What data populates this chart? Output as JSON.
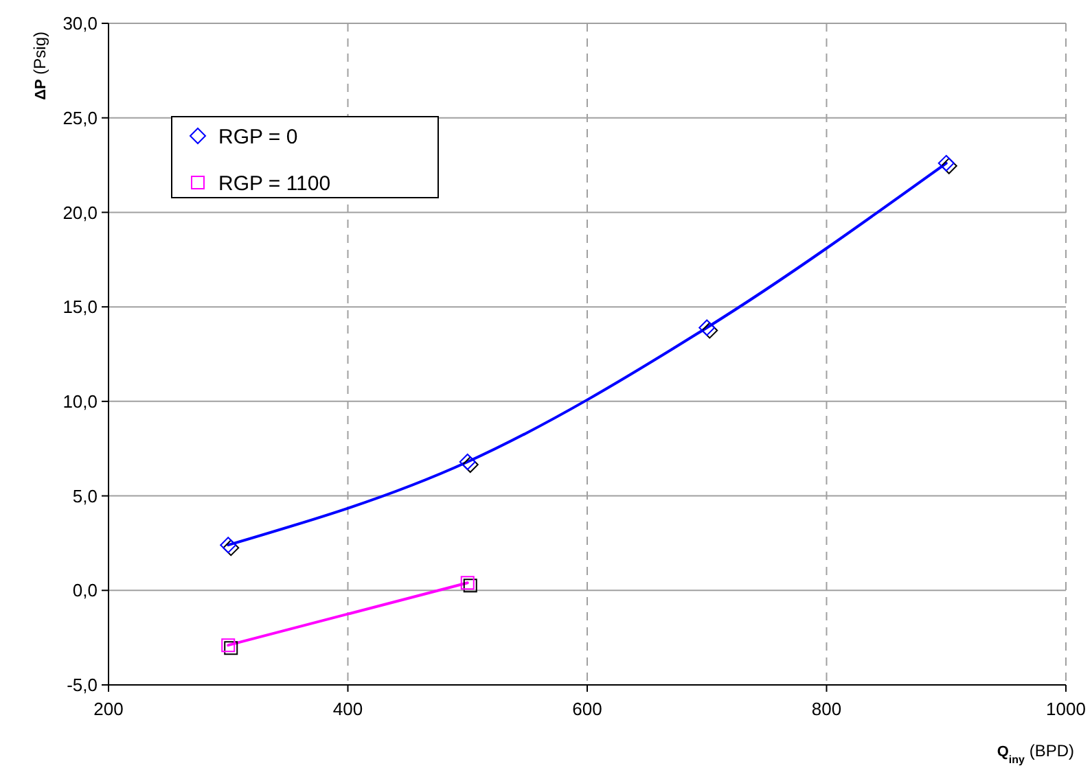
{
  "chart_data": {
    "type": "line",
    "xlabel": "Q$_{iny}$ (BPD)",
    "ylabel": "ΔP (Psig)",
    "x": [
      300,
      500,
      700,
      900
    ],
    "series": [
      {
        "name": "RGP = 0",
        "color": "#0000ff",
        "marker": "diamond",
        "values": [
          2.4,
          6.8,
          13.9,
          22.6
        ]
      },
      {
        "name": "RGP = 1100",
        "color": "#ff00ff",
        "marker": "square",
        "x": [
          300,
          500
        ],
        "values": [
          -2.9,
          0.4
        ]
      }
    ],
    "xlim": [
      200,
      1000
    ],
    "xticks": [
      200,
      400,
      600,
      800,
      1000
    ],
    "ylim": [
      -5,
      30
    ],
    "yticks": [
      {
        "value": -5,
        "label": "-5,0"
      },
      {
        "value": 0,
        "label": "0,0"
      },
      {
        "value": 5,
        "label": "5,0"
      },
      {
        "value": 10,
        "label": "10,0"
      },
      {
        "value": 15,
        "label": "15,0"
      },
      {
        "value": 20,
        "label": "20,0"
      },
      {
        "value": 25,
        "label": "25,0"
      },
      {
        "value": 30,
        "label": "30,0"
      }
    ],
    "grid": true,
    "legend": "top left",
    "line_style": "solid"
  }
}
